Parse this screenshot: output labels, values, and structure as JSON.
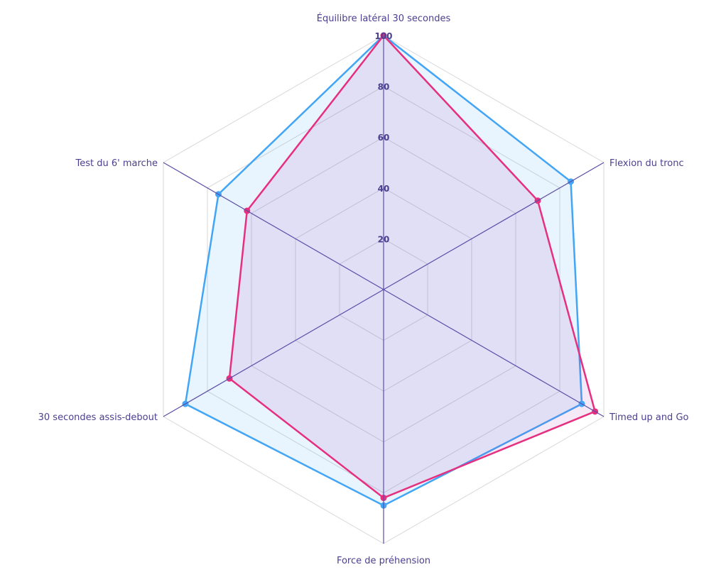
{
  "chart_data": {
    "type": "radar",
    "axes": [
      "Équilibre latéral 30 secondes",
      "Flexion du tronc",
      "Timed up and Go",
      "Force de préhension",
      "30 secondes assis-debout",
      "Test du 6' marche"
    ],
    "r_range": [
      0,
      100
    ],
    "ticks": [
      "20",
      "40",
      "60",
      "80",
      "100"
    ],
    "tick_values": [
      20,
      40,
      60,
      80,
      100
    ],
    "grid": true,
    "series": [
      {
        "values": [
          100,
          85,
          90,
          85,
          90,
          75
        ],
        "color": "#42a5f5",
        "fill": "#42a5f5"
      },
      {
        "values": [
          100,
          70,
          96,
          82,
          70,
          62
        ],
        "color": "#e6307f",
        "fill": "#9c27b0"
      }
    ]
  },
  "colors": {
    "axis_line": "#5b4ea8",
    "grid_line": "#d8d8d8",
    "label": "#4b3f8f"
  }
}
